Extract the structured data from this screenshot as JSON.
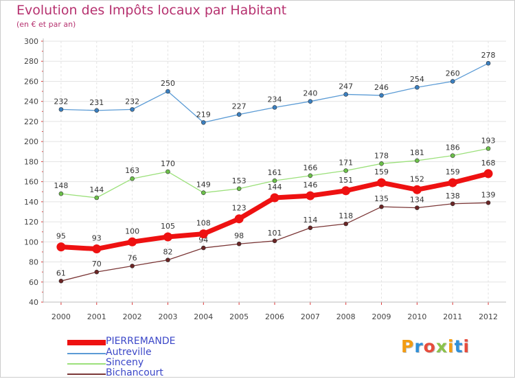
{
  "title": "Evolution des Impôts locaux par Habitant",
  "subtitle": "(en € et par an)",
  "logo": {
    "text": "Proxiti",
    "letters": [
      {
        "ch": "P",
        "color": "#f39c12"
      },
      {
        "ch": "r",
        "color": "#2f8fd8"
      },
      {
        "ch": "o",
        "color": "#e74c3c"
      },
      {
        "ch": "x",
        "color": "#8bc34a"
      },
      {
        "ch": "i",
        "color": "#f39c12"
      },
      {
        "ch": "t",
        "color": "#2f8fd8"
      },
      {
        "ch": "i",
        "color": "#e74c3c"
      }
    ]
  },
  "chart_data": {
    "type": "line",
    "title": "Evolution des Impôts locaux par Habitant",
    "subtitle": "(en € et par an)",
    "xlabel": "",
    "ylabel": "",
    "x": [
      2000,
      2001,
      2002,
      2003,
      2004,
      2005,
      2006,
      2007,
      2008,
      2009,
      2010,
      2011,
      2012
    ],
    "ylim": [
      40,
      300
    ],
    "yticks": [
      40,
      60,
      80,
      100,
      120,
      140,
      160,
      180,
      200,
      220,
      240,
      260,
      280,
      300
    ],
    "grid": true,
    "legend": "bottom-left",
    "series": [
      {
        "name": "Autreville",
        "color": "#5b9bd5",
        "marker": "#3a7fc0",
        "thick": false,
        "values": [
          232,
          231,
          232,
          250,
          219,
          227,
          234,
          240,
          247,
          246,
          254,
          260,
          278
        ]
      },
      {
        "name": "Sinceny",
        "color": "#9be07a",
        "marker": "#6cc04a",
        "thick": false,
        "values": [
          148,
          144,
          163,
          170,
          149,
          153,
          161,
          166,
          171,
          178,
          181,
          186,
          193
        ]
      },
      {
        "name": "Bichancourt",
        "color": "#7a3535",
        "marker": "#6b2525",
        "thick": false,
        "values": [
          61,
          70,
          76,
          82,
          94,
          98,
          101,
          114,
          118,
          135,
          134,
          138,
          139
        ]
      },
      {
        "name": "PIERREMANDE",
        "color": "#ee1111",
        "marker": "#ee1111",
        "thick": true,
        "values": [
          95,
          93,
          100,
          105,
          108,
          123,
          144,
          146,
          151,
          159,
          152,
          159,
          168
        ]
      }
    ],
    "legend_order": [
      "PIERREMANDE",
      "Autreville",
      "Sinceny",
      "Bichancourt"
    ]
  }
}
